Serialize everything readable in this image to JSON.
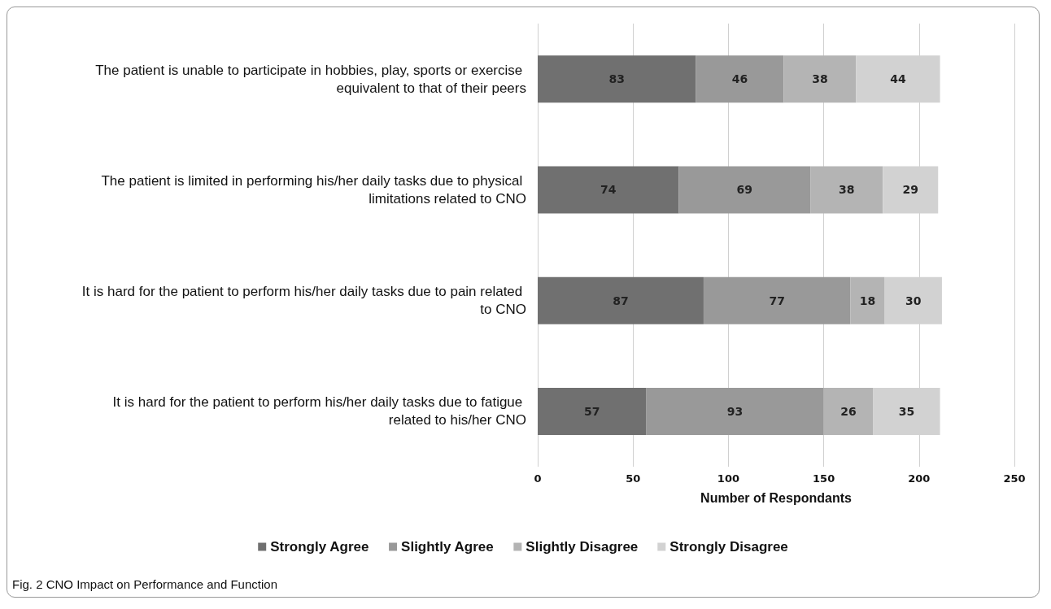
{
  "chart_data": {
    "type": "bar",
    "orientation": "horizontal",
    "stacked": true,
    "categories": [
      "The patient is unable to participate in hobbies, play, sports or exercise equivalent to that of their peers",
      "The patient is limited in performing his/her daily tasks due to physical limitations related to CNO",
      "It is hard for the patient to perform his/her daily tasks due to pain related to CNO",
      "It is hard for the patient to perform his/her daily tasks due to fatigue related to his/her CNO"
    ],
    "series": [
      {
        "name": "Strongly Agree",
        "color": "#707070",
        "values": [
          83,
          74,
          87,
          57
        ]
      },
      {
        "name": "Slightly Agree",
        "color": "#999999",
        "values": [
          46,
          69,
          77,
          93
        ]
      },
      {
        "name": "Slightly Disagree",
        "color": "#b4b4b4",
        "values": [
          38,
          38,
          18,
          26
        ]
      },
      {
        "name": "Strongly Disagree",
        "color": "#d2d2d2",
        "values": [
          44,
          29,
          30,
          35
        ]
      }
    ],
    "xlabel": "Number of Respondants",
    "xlim": [
      0,
      250
    ],
    "xticks": [
      0,
      50,
      100,
      150,
      200,
      250
    ],
    "grid": "x",
    "legend": "bottom",
    "data_labels": true,
    "annotations": [
      "Fig. 2 CNO Impact on Performance and Function"
    ]
  }
}
